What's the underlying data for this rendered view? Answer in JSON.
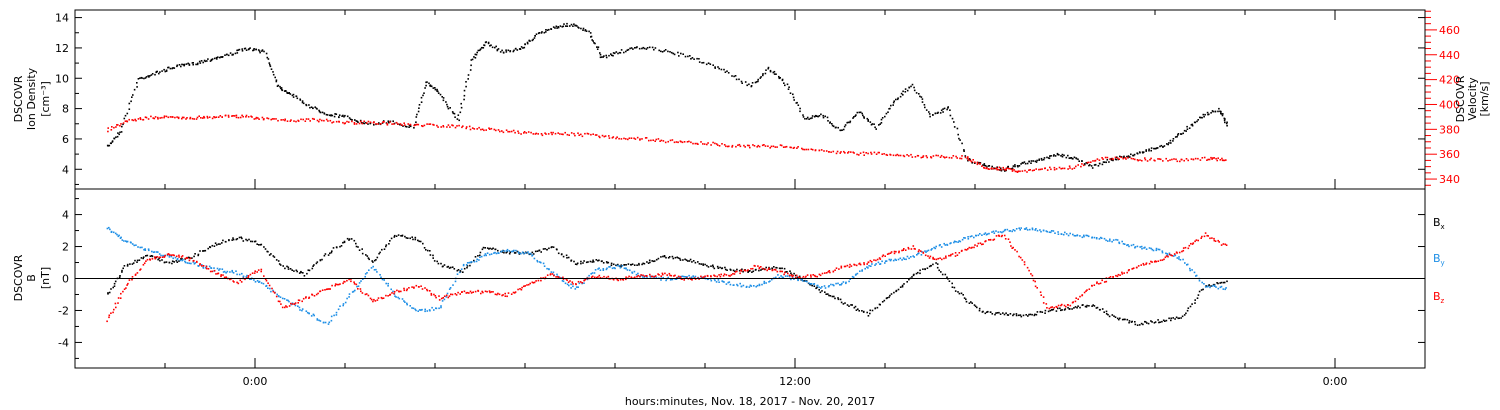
{
  "chart_data": [
    {
      "type": "scatter",
      "panel": "top",
      "left_axis": {
        "label_lines": [
          "DSCOVR",
          "Ion Density",
          "[cm⁻³]"
        ],
        "ylim": [
          2.7,
          14.5
        ],
        "ticks": [
          4,
          6,
          8,
          10,
          12,
          14
        ],
        "color": "#000000"
      },
      "right_axis": {
        "label_lines": [
          "DSCOVR",
          "Velocity",
          "[km/s]"
        ],
        "ylim": [
          332,
          476
        ],
        "ticks": [
          340,
          360,
          380,
          400,
          420,
          440,
          460
        ],
        "color": "#ff0000"
      },
      "series": [
        {
          "axis": "left",
          "color": "#000000",
          "x": [
            -3.3,
            -3.0,
            -2.6,
            -2.2,
            -1.8,
            -1.4,
            -1.0,
            -0.6,
            -0.2,
            0.2,
            0.5,
            0.8,
            1.2,
            1.6,
            2.0,
            2.5,
            3.0,
            3.5,
            3.8,
            4.1,
            4.5,
            4.8,
            5.1,
            5.5,
            5.9,
            6.2,
            6.6,
            7.0,
            7.4,
            7.7,
            8.1,
            8.6,
            9.2,
            9.8,
            10.4,
            11.0,
            11.4,
            11.8,
            12.2,
            12.6,
            13.0,
            13.4,
            13.8,
            14.2,
            14.6,
            15.0,
            15.4,
            15.8,
            16.2,
            16.6,
            17.0,
            17.4,
            17.8,
            18.2,
            18.6,
            19.0,
            19.4,
            19.8,
            20.2,
            20.6,
            21.0,
            21.4,
            21.6
          ],
          "y": [
            5.5,
            6.6,
            10.0,
            10.4,
            10.8,
            11.0,
            11.3,
            11.6,
            12.0,
            11.8,
            9.5,
            9.0,
            8.2,
            7.7,
            7.5,
            7.0,
            7.2,
            6.8,
            9.8,
            9.0,
            7.3,
            11.2,
            12.4,
            11.8,
            12.0,
            12.8,
            13.4,
            13.6,
            13.1,
            11.4,
            11.8,
            12.1,
            11.8,
            11.3,
            10.6,
            9.5,
            10.7,
            9.6,
            7.4,
            7.6,
            6.6,
            7.8,
            6.8,
            8.6,
            9.6,
            7.6,
            8.1,
            4.7,
            4.3,
            4.0,
            4.4,
            4.6,
            5.0,
            4.8,
            4.2,
            4.7,
            4.9,
            5.3,
            5.6,
            6.5,
            7.5,
            8.0,
            6.9
          ]
        },
        {
          "axis": "right",
          "color": "#ff0000",
          "x": [
            -3.3,
            -2.8,
            -2.3,
            -1.8,
            -1.3,
            -0.8,
            -0.3,
            0.2,
            0.8,
            1.4,
            2.0,
            2.6,
            3.2,
            3.8,
            4.4,
            5.0,
            5.6,
            6.2,
            6.8,
            7.4,
            8.0,
            8.6,
            9.2,
            9.8,
            10.4,
            11.0,
            11.6,
            12.2,
            12.8,
            13.4,
            14.0,
            14.6,
            15.2,
            15.8,
            16.2,
            16.6,
            17.0,
            17.6,
            18.2,
            18.8,
            19.4,
            20.0,
            20.6,
            21.2,
            21.6
          ],
          "y": [
            380,
            388,
            390,
            390,
            390,
            391,
            391,
            389,
            388,
            388,
            386,
            386,
            385,
            384,
            383,
            381,
            379,
            377,
            377,
            376,
            374,
            373,
            371,
            370,
            368,
            367,
            367,
            365,
            362,
            361,
            361,
            359,
            359,
            358,
            350,
            349,
            347,
            349,
            350,
            357,
            357,
            356,
            356,
            357,
            356
          ]
        }
      ]
    },
    {
      "type": "scatter",
      "panel": "bottom",
      "left_axis": {
        "label_lines": [
          "DSCOVR",
          "B",
          "[nT]"
        ],
        "ylim": [
          -5.6,
          5.6
        ],
        "ticks": [
          -4,
          -2,
          0,
          2,
          4
        ],
        "color": "#000000"
      },
      "legend_placement": "right",
      "legend": [
        {
          "label": "B",
          "subscript": "x",
          "color": "#000000"
        },
        {
          "label": "B",
          "subscript": "y",
          "color": "#1e8fe6"
        },
        {
          "label": "B",
          "subscript": "z",
          "color": "#ff0000"
        }
      ],
      "series": [
        {
          "name": "Bx",
          "color": "#000000",
          "x": [
            -3.3,
            -2.9,
            -2.4,
            -1.9,
            -1.4,
            -0.9,
            -0.4,
            0.1,
            0.6,
            1.1,
            1.6,
            2.1,
            2.6,
            3.1,
            3.6,
            4.1,
            4.6,
            5.1,
            5.6,
            6.1,
            6.6,
            7.1,
            7.6,
            8.1,
            8.6,
            9.1,
            9.6,
            10.1,
            10.6,
            11.1,
            11.6,
            12.1,
            12.6,
            13.1,
            13.6,
            14.1,
            14.6,
            15.1,
            15.6,
            16.1,
            16.6,
            17.1,
            17.6,
            18.1,
            18.6,
            19.1,
            19.6,
            20.1,
            20.6,
            21.1,
            21.6
          ],
          "y": [
            -1.0,
            0.8,
            1.5,
            1.0,
            1.4,
            2.2,
            2.6,
            2.2,
            0.8,
            0.3,
            1.6,
            2.6,
            1.0,
            2.8,
            2.5,
            0.9,
            0.5,
            2.0,
            1.7,
            1.6,
            2.0,
            1.0,
            1.2,
            0.8,
            1.0,
            1.4,
            1.2,
            0.8,
            0.6,
            0.5,
            0.8,
            0.1,
            -0.8,
            -1.5,
            -2.2,
            -1.0,
            0.2,
            1.0,
            -0.8,
            -2.0,
            -2.2,
            -2.3,
            -2.0,
            -1.8,
            -1.6,
            -2.4,
            -2.8,
            -2.6,
            -2.4,
            -0.4,
            -0.2
          ]
        },
        {
          "name": "By",
          "color": "#1e8fe6",
          "x": [
            -3.3,
            -2.9,
            -2.4,
            -1.9,
            -1.4,
            -0.9,
            -0.4,
            0.1,
            0.6,
            1.1,
            1.6,
            2.1,
            2.6,
            3.1,
            3.6,
            4.1,
            4.6,
            5.1,
            5.6,
            6.1,
            6.6,
            7.1,
            7.6,
            8.1,
            8.6,
            9.1,
            9.6,
            10.1,
            10.6,
            11.1,
            11.6,
            12.1,
            12.6,
            13.1,
            13.6,
            14.1,
            14.6,
            15.1,
            15.6,
            16.1,
            16.6,
            17.1,
            17.6,
            18.1,
            18.6,
            19.1,
            19.6,
            20.1,
            20.6,
            21.1,
            21.6
          ],
          "y": [
            3.2,
            2.4,
            1.8,
            1.4,
            1.0,
            0.6,
            0.4,
            -0.2,
            -1.2,
            -2.0,
            -2.8,
            -1.0,
            0.8,
            -1.0,
            -2.0,
            -1.8,
            0.8,
            1.5,
            1.8,
            1.6,
            0.4,
            -0.6,
            0.6,
            0.8,
            0.2,
            0.0,
            0.2,
            0.0,
            -0.3,
            -0.5,
            0.2,
            0.0,
            -0.5,
            -0.2,
            0.8,
            1.2,
            1.4,
            2.0,
            2.4,
            2.8,
            3.0,
            3.2,
            3.0,
            2.8,
            2.6,
            2.4,
            2.0,
            1.8,
            1.2,
            -0.4,
            -0.6
          ]
        },
        {
          "name": "Bz",
          "color": "#ff0000",
          "x": [
            -3.3,
            -2.9,
            -2.4,
            -1.9,
            -1.4,
            -0.9,
            -0.4,
            0.1,
            0.6,
            1.1,
            1.6,
            2.1,
            2.6,
            3.1,
            3.6,
            4.1,
            4.6,
            5.1,
            5.6,
            6.1,
            6.6,
            7.1,
            7.6,
            8.1,
            8.6,
            9.1,
            9.6,
            10.1,
            10.6,
            11.1,
            11.6,
            12.1,
            12.6,
            13.1,
            13.6,
            14.1,
            14.6,
            15.1,
            15.6,
            16.1,
            16.6,
            17.1,
            17.6,
            18.1,
            18.6,
            19.1,
            19.6,
            20.1,
            20.6,
            21.1,
            21.6
          ],
          "y": [
            -2.6,
            -0.5,
            1.2,
            1.6,
            1.2,
            0.4,
            -0.2,
            0.6,
            -1.8,
            -1.2,
            -0.6,
            0.0,
            -1.4,
            -0.8,
            -0.4,
            -1.2,
            -0.8,
            -0.8,
            -1.0,
            -0.3,
            0.3,
            -0.3,
            0.2,
            0.0,
            0.2,
            0.3,
            0.0,
            0.2,
            0.3,
            0.8,
            0.5,
            0.1,
            0.3,
            0.8,
            1.0,
            1.6,
            2.0,
            1.2,
            1.6,
            2.2,
            2.8,
            1.0,
            -1.8,
            -1.6,
            -0.4,
            0.2,
            0.8,
            1.2,
            1.8,
            2.8,
            2.0
          ]
        }
      ]
    }
  ],
  "x_axis": {
    "range_hours": [
      -4.0,
      26.0
    ],
    "major_ticks": [
      0,
      12,
      24
    ],
    "major_tick_labels": [
      "0:00",
      "12:00",
      "0:00"
    ],
    "minor_tick_step_hours": 2,
    "label": "hours:minutes, Nov. 18, 2017 - Nov. 20, 2017"
  }
}
